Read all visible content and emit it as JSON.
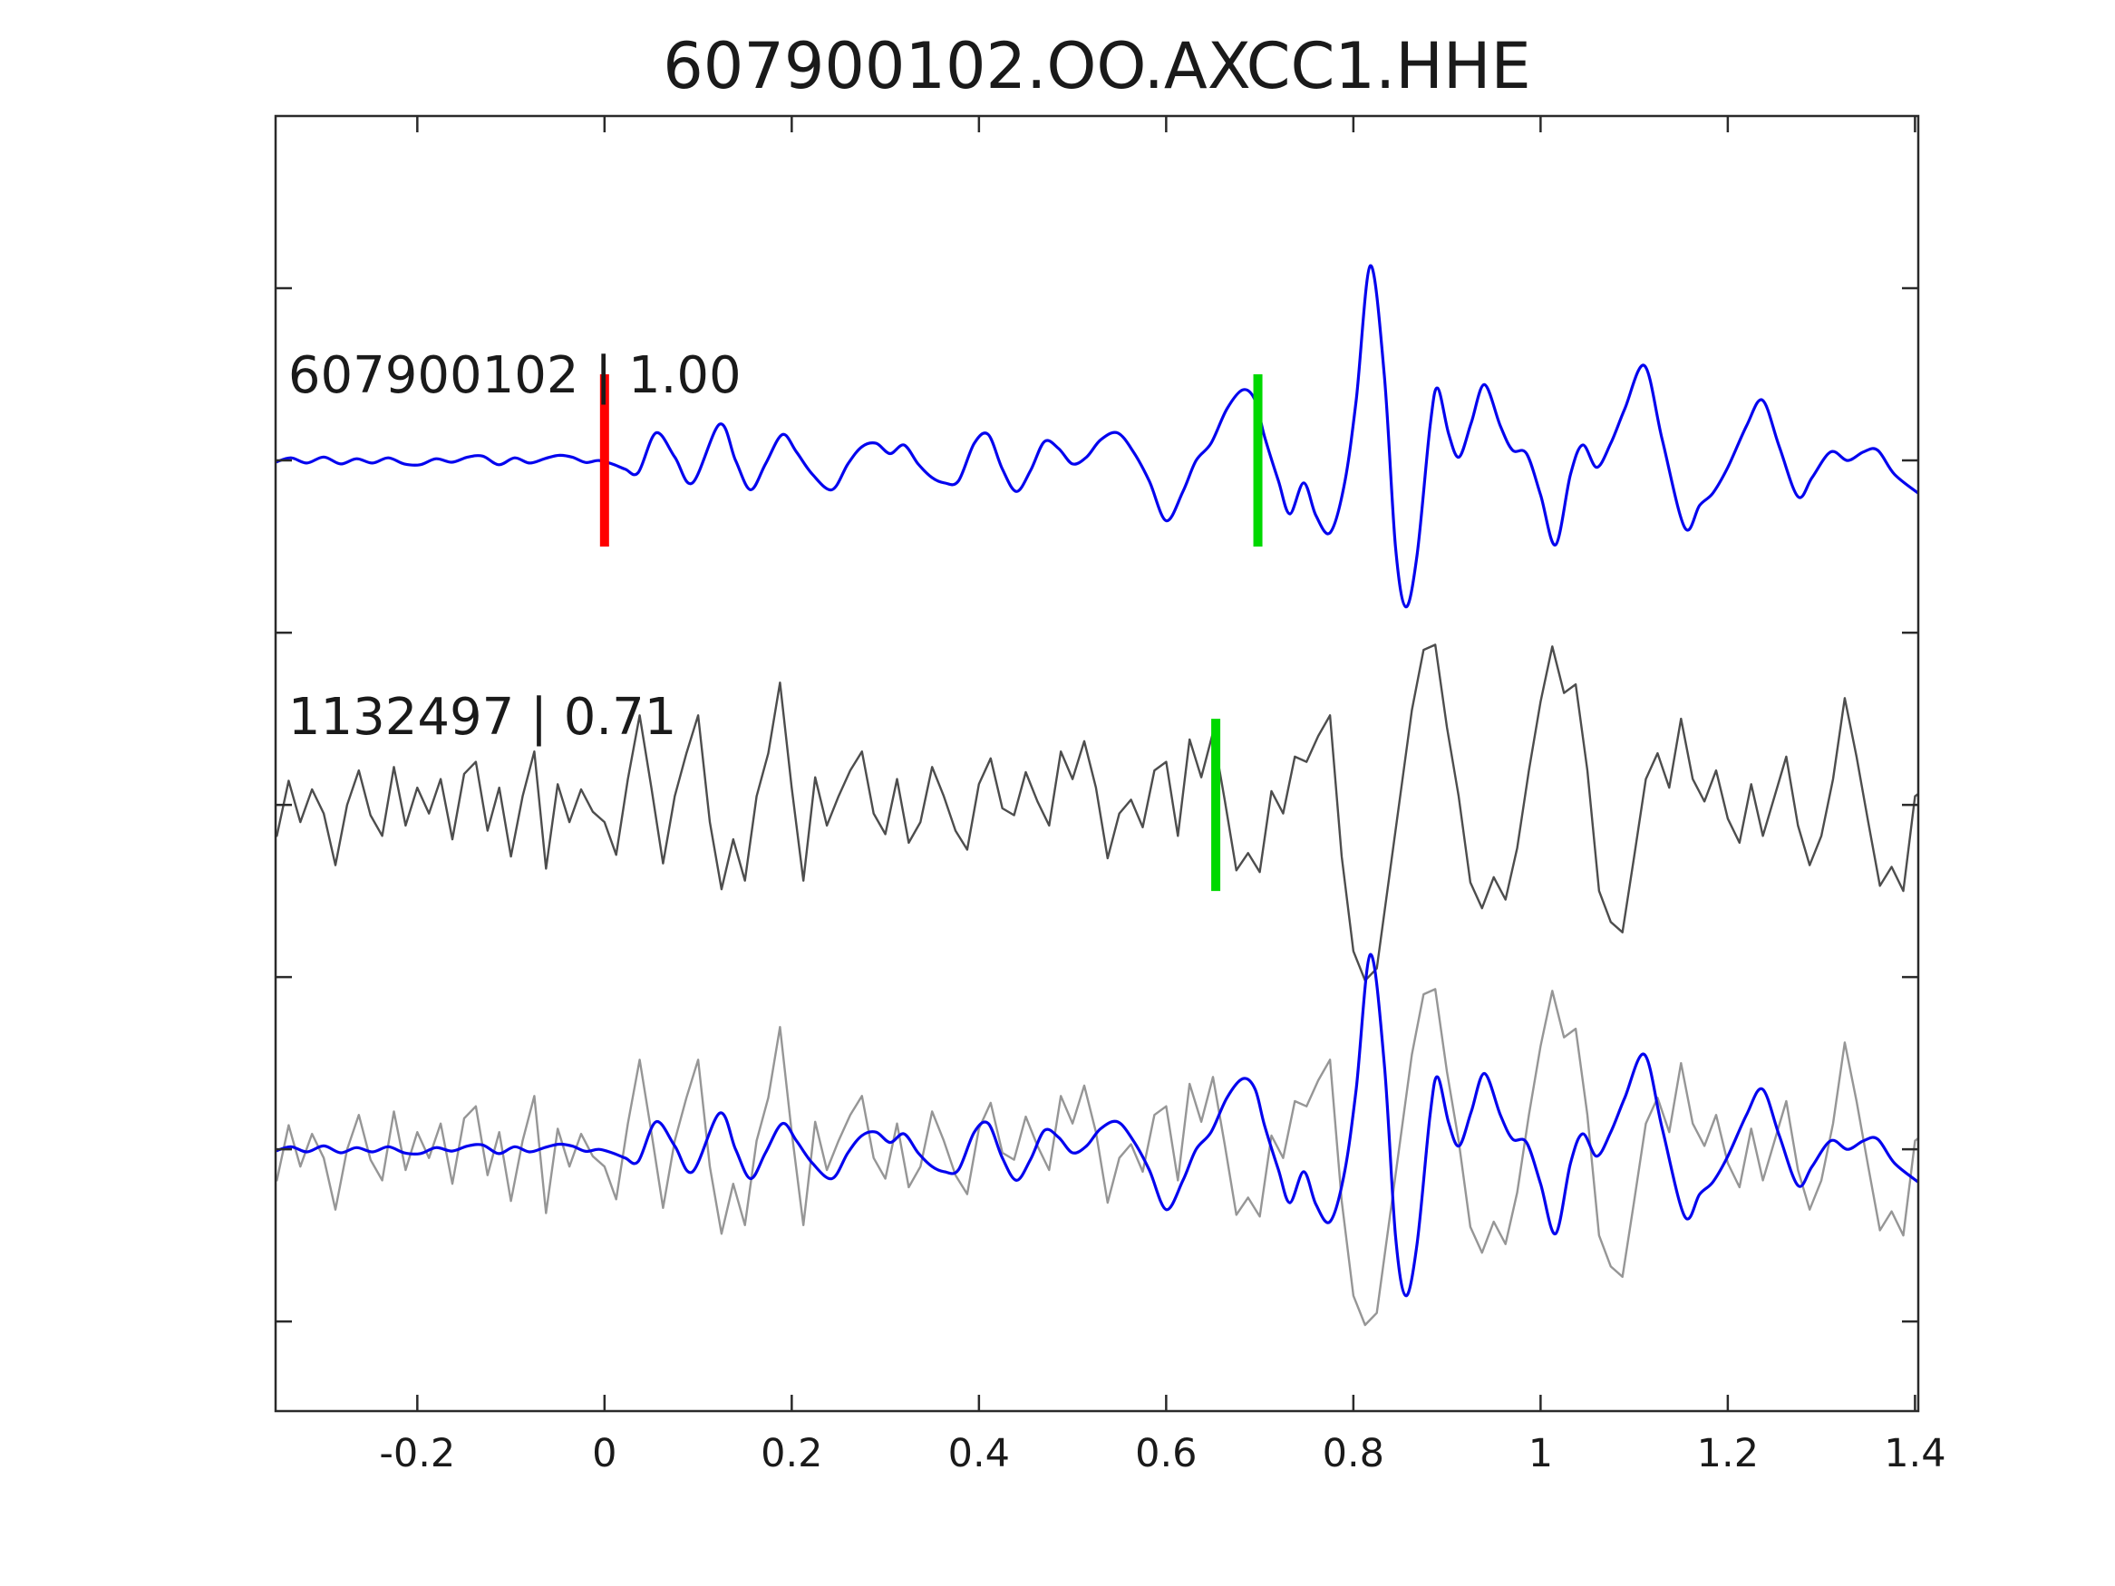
{
  "title": "607900102.OO.AXCC1.HHE",
  "colors": {
    "template_blue": "#0404ee",
    "detection_dark_gray": "#4d4d4d",
    "detection_light_gray": "#969696",
    "pick_red": "#ff0000",
    "pick_green": "#00d800",
    "axis": "#2a2a2a",
    "text": "#1a1a1a",
    "background": "#ffffff"
  },
  "chart_data": {
    "type": "line",
    "title": "607900102.OO.AXCC1.HHE",
    "xlabel": "",
    "ylabel": "",
    "grid": false,
    "legend": "none",
    "xlim": [
      -0.3514,
      1.4035
    ],
    "ylim_units": [
      -5.52,
      2.0
    ],
    "xticks": {
      "values": [
        -0.2,
        0,
        0.2,
        0.4,
        0.6,
        0.8,
        1,
        1.2,
        1.4
      ],
      "labels": [
        "-0.2",
        "0",
        "0.2",
        "0.4",
        "0.6",
        "0.8",
        "1",
        "1.2",
        "1.4"
      ]
    },
    "ytick_unit_positions": [
      1,
      0,
      -1,
      -2,
      -3,
      -4,
      -5
    ],
    "annotations": [
      {
        "text": "607900102 | 1.00",
        "x": -0.338,
        "y_units": 0.395
      },
      {
        "text": "1132497 | 0.71",
        "x": -0.338,
        "y_units": -1.59
      }
    ],
    "markers": [
      {
        "name": "template-pick-red",
        "x": 0.0,
        "y_units": 0.0,
        "half_height_units": 0.5,
        "color_key": "pick_red"
      },
      {
        "name": "template-pick-green",
        "x": 0.698,
        "y_units": 0.0,
        "half_height_units": 0.5,
        "color_key": "pick_green"
      },
      {
        "name": "detection-pick-green",
        "x": 0.653,
        "y_units": -2.0,
        "half_height_units": 0.5,
        "color_key": "pick_green"
      }
    ],
    "series": [
      {
        "name": "detection_panel2",
        "trace": "detection",
        "baseline_offset": -2,
        "color_key": "detection_dark_gray",
        "smooth": false,
        "width": 2.4
      },
      {
        "name": "detection_panel3",
        "trace": "detection",
        "baseline_offset": -4,
        "color_key": "detection_light_gray",
        "smooth": false,
        "width": 2.4
      },
      {
        "name": "template_panel1",
        "trace": "template",
        "baseline_offset": 0,
        "color_key": "template_blue",
        "smooth": true,
        "width": 3.2
      },
      {
        "name": "template_panel3",
        "trace": "template",
        "baseline_offset": -4,
        "color_key": "template_blue",
        "smooth": true,
        "width": 3.2
      }
    ],
    "traces": {
      "template": {
        "keypoints": [
          [
            -0.3514,
            -0.01
          ],
          [
            -0.335,
            0.015
          ],
          [
            -0.318,
            -0.015
          ],
          [
            -0.3,
            0.02
          ],
          [
            -0.282,
            -0.02
          ],
          [
            -0.265,
            0.01
          ],
          [
            -0.248,
            -0.015
          ],
          [
            -0.231,
            0.015
          ],
          [
            -0.214,
            -0.02
          ],
          [
            -0.197,
            -0.025
          ],
          [
            -0.18,
            0.01
          ],
          [
            -0.163,
            -0.01
          ],
          [
            -0.146,
            0.02
          ],
          [
            -0.13,
            0.025
          ],
          [
            -0.113,
            -0.025
          ],
          [
            -0.096,
            0.015
          ],
          [
            -0.08,
            -0.015
          ],
          [
            -0.063,
            0.012
          ],
          [
            -0.048,
            0.03
          ],
          [
            -0.034,
            0.018
          ],
          [
            -0.02,
            -0.012
          ],
          [
            -0.006,
            0.0
          ],
          [
            0.008,
            -0.02
          ],
          [
            0.022,
            -0.05
          ],
          [
            0.036,
            -0.07
          ],
          [
            0.055,
            0.16
          ],
          [
            0.075,
            0.02
          ],
          [
            0.094,
            -0.13
          ],
          [
            0.123,
            0.21
          ],
          [
            0.14,
            0.0
          ],
          [
            0.156,
            -0.17
          ],
          [
            0.172,
            -0.02
          ],
          [
            0.19,
            0.15
          ],
          [
            0.205,
            0.05
          ],
          [
            0.222,
            -0.08
          ],
          [
            0.243,
            -0.17
          ],
          [
            0.26,
            -0.02
          ],
          [
            0.275,
            0.08
          ],
          [
            0.29,
            0.1
          ],
          [
            0.305,
            0.04
          ],
          [
            0.32,
            0.09
          ],
          [
            0.335,
            -0.02
          ],
          [
            0.35,
            -0.1
          ],
          [
            0.363,
            -0.13
          ],
          [
            0.378,
            -0.12
          ],
          [
            0.395,
            0.1
          ],
          [
            0.41,
            0.15
          ],
          [
            0.425,
            -0.05
          ],
          [
            0.44,
            -0.18
          ],
          [
            0.455,
            -0.06
          ],
          [
            0.47,
            0.11
          ],
          [
            0.485,
            0.07
          ],
          [
            0.5,
            -0.02
          ],
          [
            0.515,
            0.02
          ],
          [
            0.53,
            0.12
          ],
          [
            0.548,
            0.16
          ],
          [
            0.565,
            0.05
          ],
          [
            0.582,
            -0.12
          ],
          [
            0.6,
            -0.35
          ],
          [
            0.618,
            -0.18
          ],
          [
            0.632,
            0.0
          ],
          [
            0.648,
            0.1
          ],
          [
            0.665,
            0.3
          ],
          [
            0.682,
            0.41
          ],
          [
            0.695,
            0.35
          ],
          [
            0.705,
            0.14
          ],
          [
            0.72,
            -0.12
          ],
          [
            0.732,
            -0.31
          ],
          [
            0.747,
            -0.13
          ],
          [
            0.76,
            -0.32
          ],
          [
            0.775,
            -0.42
          ],
          [
            0.79,
            -0.15
          ],
          [
            0.803,
            0.35
          ],
          [
            0.818,
            1.13
          ],
          [
            0.833,
            0.5
          ],
          [
            0.845,
            -0.5
          ],
          [
            0.856,
            -0.85
          ],
          [
            0.868,
            -0.55
          ],
          [
            0.882,
            0.2
          ],
          [
            0.89,
            0.42
          ],
          [
            0.902,
            0.15
          ],
          [
            0.913,
            0.02
          ],
          [
            0.926,
            0.22
          ],
          [
            0.94,
            0.44
          ],
          [
            0.957,
            0.2
          ],
          [
            0.97,
            0.06
          ],
          [
            0.985,
            0.04
          ],
          [
            1.0,
            -0.2
          ],
          [
            1.016,
            -0.49
          ],
          [
            1.032,
            -0.08
          ],
          [
            1.045,
            0.09
          ],
          [
            1.06,
            -0.04
          ],
          [
            1.075,
            0.1
          ],
          [
            1.09,
            0.3
          ],
          [
            1.111,
            0.55
          ],
          [
            1.13,
            0.12
          ],
          [
            1.154,
            -0.39
          ],
          [
            1.17,
            -0.26
          ],
          [
            1.184,
            -0.19
          ],
          [
            1.2,
            -0.04
          ],
          [
            1.22,
            0.2
          ],
          [
            1.237,
            0.35
          ],
          [
            1.255,
            0.08
          ],
          [
            1.275,
            -0.21
          ],
          [
            1.29,
            -0.1
          ],
          [
            1.31,
            0.05
          ],
          [
            1.328,
            0.0
          ],
          [
            1.345,
            0.05
          ],
          [
            1.36,
            0.06
          ],
          [
            1.378,
            -0.08
          ],
          [
            1.4035,
            -0.19
          ]
        ]
      },
      "detection": {
        "x0": -0.35,
        "dx": 0.0125,
        "amps": [
          -0.18,
          0.14,
          -0.1,
          0.09,
          -0.05,
          -0.35,
          0.0,
          0.2,
          -0.06,
          -0.18,
          0.22,
          -0.12,
          0.1,
          -0.05,
          0.15,
          -0.2,
          0.18,
          0.25,
          -0.15,
          0.1,
          -0.3,
          0.05,
          0.31,
          -0.37,
          0.12,
          -0.1,
          0.09,
          -0.04,
          -0.1,
          -0.29,
          0.15,
          0.52,
          0.1,
          -0.34,
          0.05,
          0.3,
          0.52,
          -0.1,
          -0.49,
          -0.2,
          -0.44,
          0.05,
          0.3,
          0.71,
          0.1,
          -0.44,
          0.16,
          -0.12,
          0.05,
          0.2,
          0.31,
          -0.05,
          -0.17,
          0.15,
          -0.22,
          -0.1,
          0.22,
          0.05,
          -0.15,
          -0.26,
          0.12,
          0.27,
          -0.02,
          -0.06,
          0.19,
          0.02,
          -0.12,
          0.31,
          0.15,
          0.37,
          0.1,
          -0.31,
          -0.05,
          0.03,
          -0.13,
          0.2,
          0.25,
          -0.18,
          0.38,
          0.16,
          0.42,
          0.03,
          -0.38,
          -0.28,
          -0.39,
          0.08,
          -0.05,
          0.28,
          0.25,
          0.4,
          0.52,
          -0.3,
          -0.85,
          -1.02,
          -0.95,
          -0.45,
          0.05,
          0.55,
          0.9,
          0.93,
          0.45,
          0.05,
          -0.45,
          -0.6,
          -0.42,
          -0.55,
          -0.25,
          0.2,
          0.6,
          0.92,
          0.65,
          0.7,
          0.2,
          -0.5,
          -0.68,
          -0.74,
          -0.3,
          0.15,
          0.3,
          0.1,
          0.5,
          0.15,
          0.02,
          0.2,
          -0.08,
          -0.22,
          0.12,
          -0.18,
          0.05,
          0.28,
          -0.12,
          -0.35,
          -0.18,
          0.15,
          0.62,
          0.28,
          -0.1,
          -0.47,
          -0.36,
          -0.5,
          0.05,
          0.1
        ]
      }
    }
  }
}
